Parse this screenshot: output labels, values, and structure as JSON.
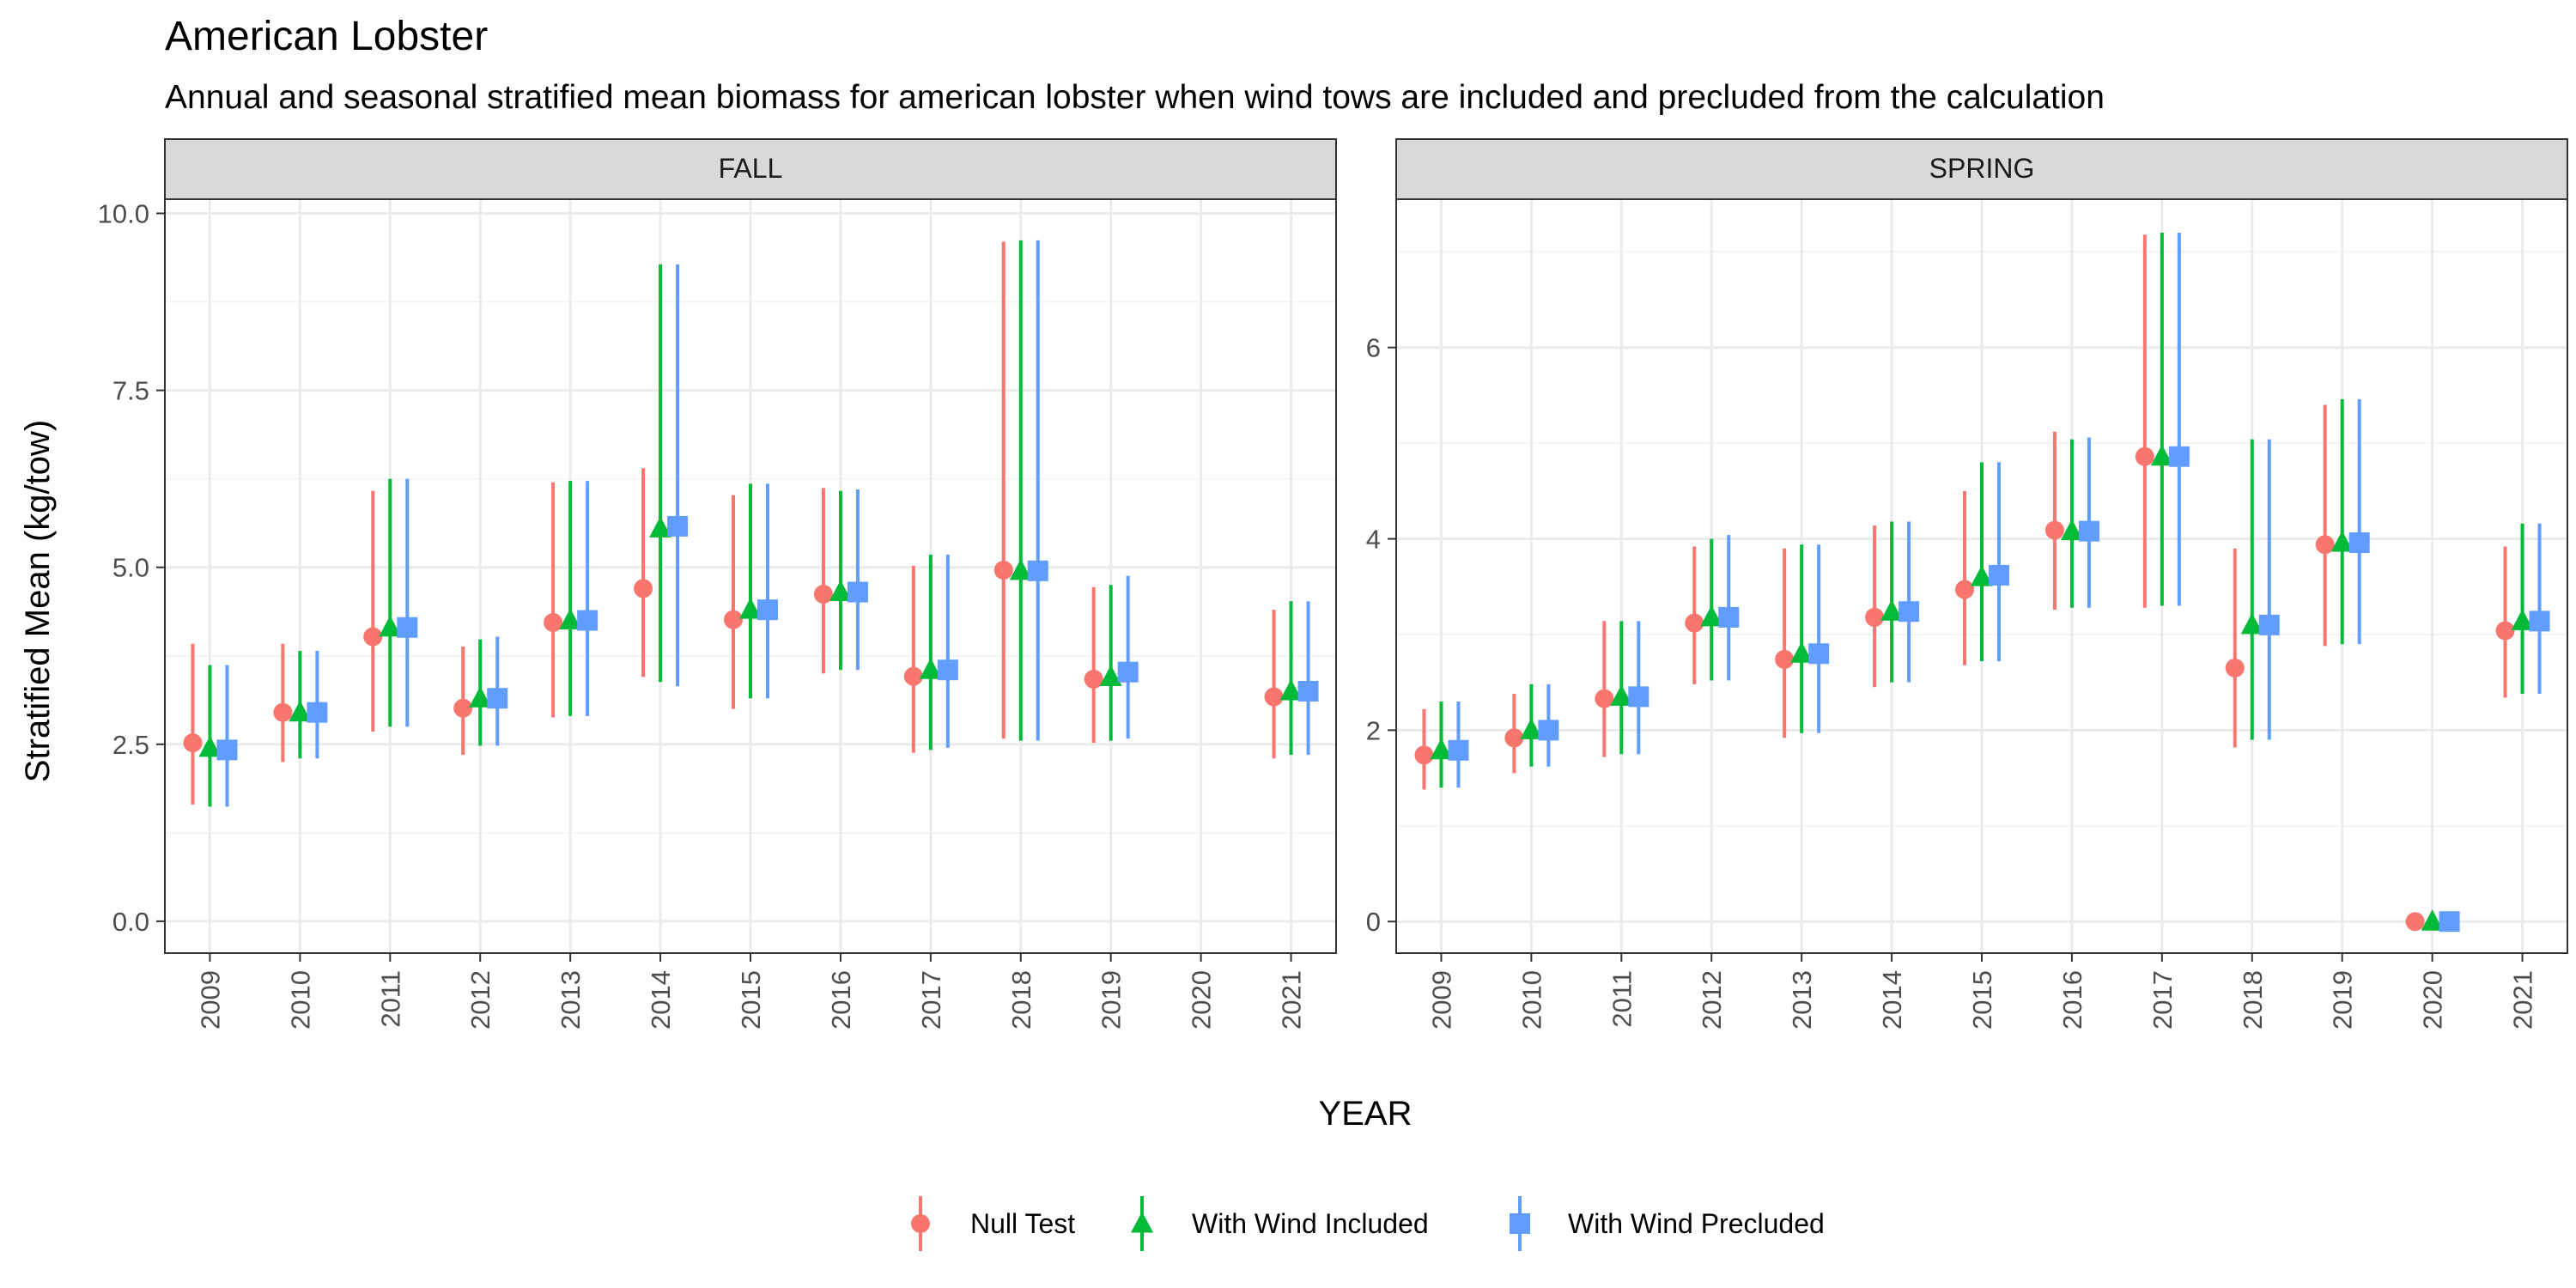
{
  "title": "American Lobster",
  "subtitle": "Annual and seasonal stratified mean biomass for american lobster when wind tows are included and precluded from the calculation",
  "colors": {
    "null_test": "#F8766D",
    "wind_included": "#00BA38",
    "wind_precluded": "#619CFF",
    "strip_fill": "#D9D9D9",
    "grid_major": "#EBEBEB",
    "grid_minor": "#F4F4F4",
    "panel_border": "#333333",
    "tick_text": "#4D4D4D"
  },
  "chart_data": {
    "type": "scatter",
    "title": "American Lobster",
    "subtitle": "Annual and seasonal stratified mean biomass for american lobster when wind tows are included and precluded from the calculation",
    "xlabel": "YEAR",
    "ylabel": "Stratified Mean (kg/tow)",
    "legend_position": "bottom",
    "grid": true,
    "series_names": [
      "Null Test",
      "With Wind Included",
      "With Wind Precluded"
    ],
    "x": [
      "2009",
      "2010",
      "2011",
      "2012",
      "2013",
      "2014",
      "2015",
      "2016",
      "2017",
      "2018",
      "2019",
      "2020",
      "2021"
    ],
    "panels": [
      {
        "strip": "FALL",
        "ylim": [
          -0.45,
          10.2
        ],
        "yticks": [
          0.0,
          2.5,
          5.0,
          7.5,
          10.0
        ],
        "ytick_labels": [
          "0.0",
          "2.5",
          "5.0",
          "7.5",
          "10.0"
        ],
        "series": [
          {
            "name": "Null Test",
            "values": [
              2.52,
              2.95,
              4.02,
              3.01,
              4.22,
              4.7,
              4.26,
              4.62,
              3.46,
              4.96,
              3.42,
              null,
              3.17
            ],
            "lower": [
              1.65,
              2.25,
              2.68,
              2.35,
              2.88,
              3.45,
              3.0,
              3.5,
              2.38,
              2.58,
              2.52,
              null,
              2.3
            ],
            "upper": [
              3.92,
              3.92,
              6.08,
              3.88,
              6.2,
              6.4,
              6.02,
              6.12,
              5.02,
              9.6,
              4.72,
              null,
              4.4
            ]
          },
          {
            "name": "With Wind Included",
            "values": [
              2.45,
              2.95,
              4.15,
              3.15,
              4.25,
              5.55,
              4.4,
              4.65,
              3.55,
              4.95,
              3.45,
              null,
              3.25
            ],
            "lower": [
              1.62,
              2.3,
              2.75,
              2.48,
              2.9,
              3.38,
              3.15,
              3.55,
              2.42,
              2.55,
              2.55,
              null,
              2.35
            ],
            "upper": [
              3.62,
              3.82,
              6.25,
              3.98,
              6.22,
              9.28,
              6.18,
              6.08,
              5.18,
              9.62,
              4.75,
              null,
              4.52
            ]
          },
          {
            "name": "With Wind Precluded",
            "values": [
              2.42,
              2.95,
              4.15,
              3.15,
              4.25,
              5.58,
              4.4,
              4.65,
              3.55,
              4.95,
              3.52,
              null,
              3.25
            ],
            "lower": [
              1.62,
              2.3,
              2.75,
              2.48,
              2.9,
              3.32,
              3.15,
              3.55,
              2.45,
              2.55,
              2.58,
              null,
              2.35
            ],
            "upper": [
              3.62,
              3.82,
              6.25,
              4.02,
              6.22,
              9.28,
              6.18,
              6.1,
              5.18,
              9.62,
              4.88,
              null,
              4.52
            ]
          }
        ]
      },
      {
        "strip": "SPRING",
        "ylim": [
          -0.33,
          7.55
        ],
        "yticks": [
          0,
          2,
          4,
          6
        ],
        "ytick_labels": [
          "0",
          "2",
          "4",
          "6"
        ],
        "series": [
          {
            "name": "Null Test",
            "values": [
              1.74,
              1.92,
              2.33,
              3.12,
              2.74,
              3.18,
              3.47,
              4.09,
              4.86,
              2.65,
              3.94,
              0.0,
              3.04
            ],
            "lower": [
              1.38,
              1.55,
              1.72,
              2.48,
              1.92,
              2.45,
              2.68,
              3.26,
              3.28,
              1.82,
              2.88,
              0.0,
              2.34
            ],
            "upper": [
              2.22,
              2.38,
              3.14,
              3.92,
              3.9,
              4.14,
              4.5,
              5.12,
              7.18,
              3.9,
              5.4,
              0.0,
              3.92
            ]
          },
          {
            "name": "With Wind Included",
            "values": [
              1.79,
              2.0,
              2.35,
              3.18,
              2.8,
              3.24,
              3.6,
              4.08,
              4.86,
              3.1,
              3.96,
              0.0,
              3.14
            ],
            "lower": [
              1.4,
              1.62,
              1.75,
              2.52,
              1.97,
              2.5,
              2.72,
              3.28,
              3.3,
              1.9,
              2.9,
              0.0,
              2.38
            ],
            "upper": [
              2.3,
              2.48,
              3.14,
              4.0,
              3.94,
              4.18,
              4.8,
              5.04,
              7.2,
              5.04,
              5.46,
              0.0,
              4.16
            ]
          },
          {
            "name": "With Wind Precluded",
            "values": [
              1.79,
              2.0,
              2.35,
              3.18,
              2.8,
              3.24,
              3.62,
              4.08,
              4.86,
              3.1,
              3.96,
              0.0,
              3.14
            ],
            "lower": [
              1.4,
              1.62,
              1.75,
              2.52,
              1.97,
              2.5,
              2.72,
              3.28,
              3.3,
              1.9,
              2.9,
              0.0,
              2.38
            ],
            "upper": [
              2.3,
              2.48,
              3.14,
              4.04,
              3.94,
              4.18,
              4.8,
              5.06,
              7.2,
              5.04,
              5.46,
              0.0,
              4.16
            ]
          }
        ]
      }
    ]
  }
}
